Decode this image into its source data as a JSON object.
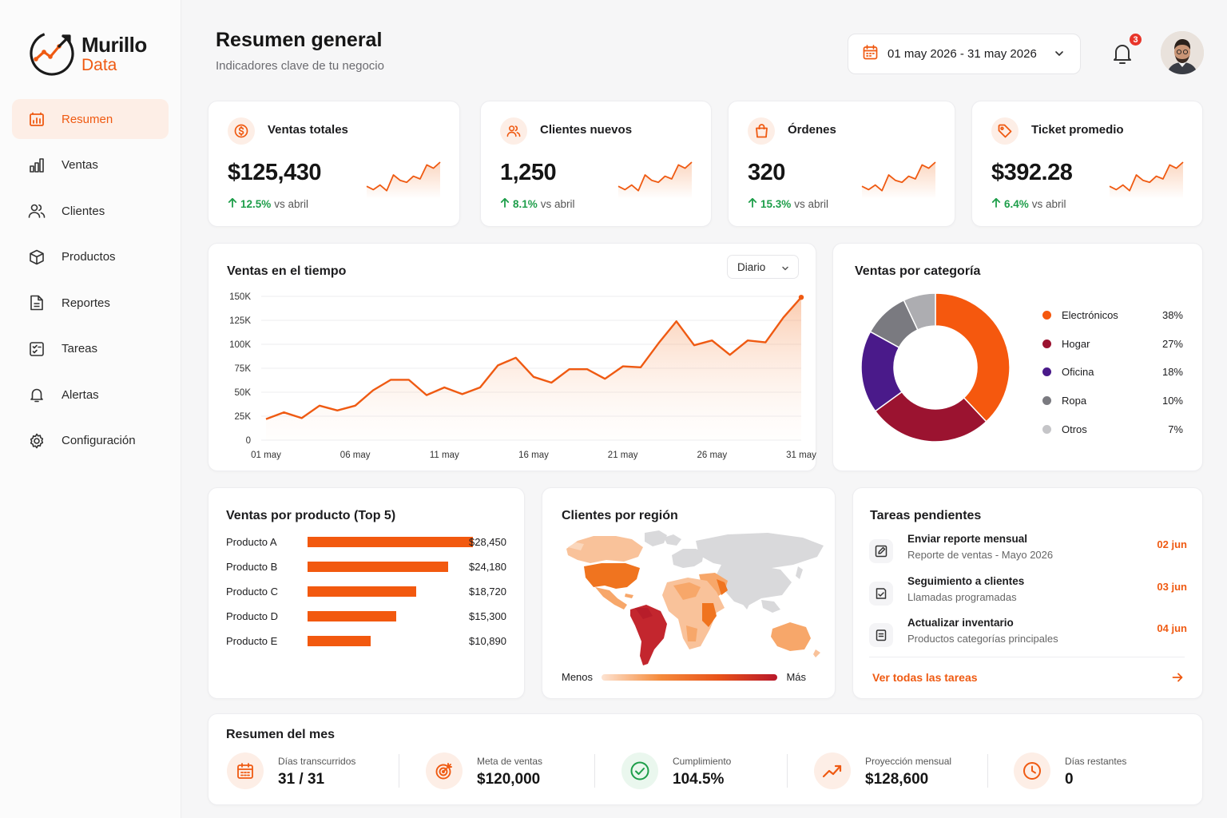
{
  "brand": {
    "name": "Murillo",
    "sub": "Data",
    "accent": "#ef5a12"
  },
  "sidebar": {
    "items": [
      {
        "label": "Resumen",
        "icon": "dashboard-icon",
        "active": true
      },
      {
        "label": "Ventas",
        "icon": "bar-chart-icon"
      },
      {
        "label": "Clientes",
        "icon": "users-icon"
      },
      {
        "label": "Productos",
        "icon": "box-icon"
      },
      {
        "label": "Reportes",
        "icon": "document-icon"
      },
      {
        "label": "Tareas",
        "icon": "checklist-icon"
      },
      {
        "label": "Alertas",
        "icon": "bell-icon"
      },
      {
        "label": "Configuración",
        "icon": "gear-icon"
      }
    ]
  },
  "header": {
    "title": "Resumen general",
    "subtitle": "Indicadores clave de tu negocio",
    "date_range": "01 may 2026 - 31 may 2026",
    "notifications": "3"
  },
  "kpis": [
    {
      "label": "Ventas totales",
      "value": "$125,430",
      "pct": "12.5%",
      "vs": "vs abril",
      "icon": "dollar-icon"
    },
    {
      "label": "Clientes nuevos",
      "value": "1,250",
      "pct": "8.1%",
      "vs": "vs abril",
      "icon": "users-icon"
    },
    {
      "label": "Órdenes",
      "value": "320",
      "pct": "15.3%",
      "vs": "vs abril",
      "icon": "shopping-bag-icon"
    },
    {
      "label": "Ticket promedio",
      "value": "$392.28",
      "pct": "6.4%",
      "vs": "vs abril",
      "icon": "tag-icon"
    }
  ],
  "sales_chart": {
    "title": "Ventas en el tiempo",
    "period": "Diario",
    "chart_data": {
      "type": "area",
      "y_ticks": [
        "150K",
        "125K",
        "100K",
        "75K",
        "50K",
        "25K",
        "0"
      ],
      "x_ticks": [
        "01 may",
        "06 may",
        "11 may",
        "16 may",
        "21 may",
        "26 may",
        "31 may"
      ],
      "ylim": [
        0,
        150000
      ],
      "x": [
        1,
        2,
        3,
        4,
        5,
        6,
        7,
        8,
        9,
        10,
        11,
        12,
        13,
        14,
        15,
        16,
        17,
        18,
        19,
        20,
        21,
        22,
        23,
        24,
        25,
        26,
        27,
        28,
        29,
        30,
        31
      ],
      "values": [
        22000,
        29000,
        23000,
        36000,
        31000,
        36000,
        52000,
        63000,
        63000,
        47000,
        55000,
        48000,
        55000,
        78000,
        86000,
        66000,
        60000,
        74000,
        74000,
        64000,
        77000,
        76000,
        101000,
        124000,
        99000,
        104000,
        89000,
        104000,
        102000,
        128000,
        149000
      ],
      "grid": true,
      "color": "#ef5a12"
    }
  },
  "category_chart": {
    "title": "Ventas por categoría",
    "chart_data": {
      "type": "pie",
      "donut": true,
      "slices": [
        {
          "name": "Electrónicos",
          "value": 38,
          "label": "38%",
          "color": "#f5580e"
        },
        {
          "name": "Hogar",
          "value": 27,
          "label": "27%",
          "color": "#9b1330"
        },
        {
          "name": "Oficina",
          "value": 18,
          "label": "18%",
          "color": "#4a1a8a"
        },
        {
          "name": "Ropa",
          "value": 10,
          "label": "10%",
          "color": "#7a7a80"
        },
        {
          "name": "Otros",
          "value": 7,
          "label": "7%",
          "color": "#adadb1"
        }
      ],
      "legend": "right"
    }
  },
  "product_chart": {
    "title": "Ventas por producto (Top 5)",
    "chart_data": {
      "type": "bar",
      "orientation": "horizontal",
      "categories": [
        "Producto A",
        "Producto B",
        "Producto C",
        "Producto D",
        "Producto E"
      ],
      "values": [
        28450,
        24180,
        18720,
        15300,
        10890
      ],
      "labels": [
        "$28,450",
        "$24,180",
        "$18,720",
        "$15,300",
        "$10,890"
      ],
      "xlim": [
        0,
        28450
      ],
      "color": "#f2590f"
    }
  },
  "region_map": {
    "title": "Clientes por región",
    "legend_low": "Menos",
    "legend_high": "Más"
  },
  "tasks": {
    "title": "Tareas pendientes",
    "items": [
      {
        "title": "Enviar reporte mensual",
        "sub": "Reporte de ventas - Mayo 2026",
        "date": "02 jun",
        "icon": "edit-icon"
      },
      {
        "title": "Seguimiento a clientes",
        "sub": "Llamadas programadas",
        "date": "03 jun",
        "icon": "calendar-check-icon"
      },
      {
        "title": "Actualizar inventario",
        "sub": "Productos categorías principales",
        "date": "04 jun",
        "icon": "clipboard-icon"
      }
    ],
    "link": "Ver todas las tareas"
  },
  "month_summary": {
    "title": "Resumen del mes",
    "items": [
      {
        "label": "Días transcurridos",
        "value": "31 / 31",
        "icon": "calendar-icon"
      },
      {
        "label": "Meta de ventas",
        "value": "$120,000",
        "icon": "target-icon"
      },
      {
        "label": "Cumplimiento",
        "value": "104.5%",
        "icon": "check-circle-icon"
      },
      {
        "label": "Proyección mensual",
        "value": "$128,600",
        "icon": "trend-up-icon"
      },
      {
        "label": "Días restantes",
        "value": "0",
        "icon": "clock-icon"
      }
    ]
  }
}
